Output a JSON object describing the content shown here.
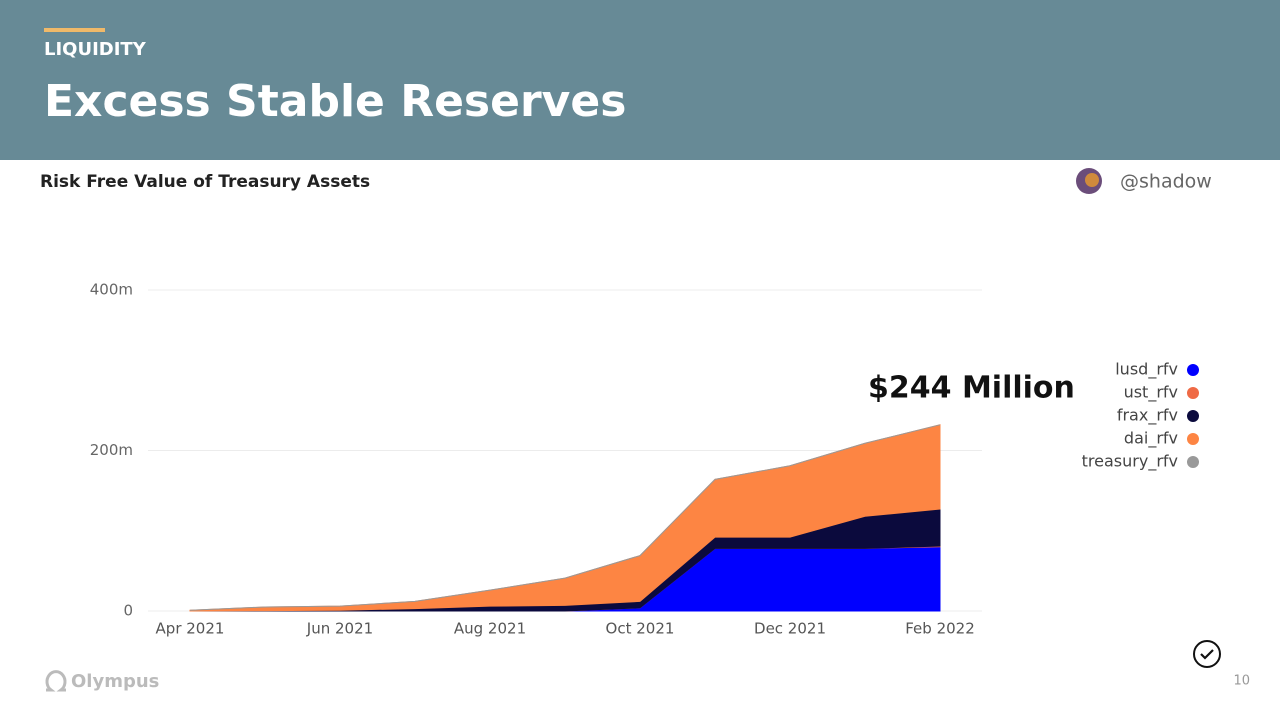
{
  "header": {
    "eyebrow": "LIQUIDITY",
    "title": "Excess Stable Reserves"
  },
  "chart_data": {
    "type": "stacked-area",
    "title": "Risk Free Value of Treasury Assets",
    "author": "@shadow",
    "annotation": "$244 Million",
    "x": [
      "2021-04",
      "2021-05",
      "2021-06",
      "2021-07",
      "2021-08",
      "2021-09",
      "2021-10",
      "2021-11",
      "2021-12",
      "2022-01",
      "2022-02"
    ],
    "xticks": [
      {
        "value": "2021-04",
        "label": "Apr 2021"
      },
      {
        "value": "2021-06",
        "label": "Jun 2021"
      },
      {
        "value": "2021-08",
        "label": "Aug 2021"
      },
      {
        "value": "2021-10",
        "label": "Oct 2021"
      },
      {
        "value": "2021-12",
        "label": "Dec 2021"
      },
      {
        "value": "2022-02",
        "label": "Feb 2022"
      }
    ],
    "ylim": [
      0,
      400
    ],
    "yticks": [
      0,
      {
        "value": 200,
        "label": "200m"
      },
      {
        "value": 400,
        "label": "400m"
      }
    ],
    "grid": true,
    "legend": "right",
    "series": [
      {
        "name": "lusd_rfv",
        "color": "#0000ff",
        "values": [
          0,
          0,
          0,
          0,
          0,
          0,
          4,
          78,
          78,
          78,
          80
        ]
      },
      {
        "name": "ust_rfv",
        "color": "#ef6a45",
        "values": [
          0,
          0,
          0,
          0,
          0,
          0,
          0,
          0,
          0,
          0,
          1
        ]
      },
      {
        "name": "frax_rfv",
        "color": "#0b0a3d",
        "values": [
          0,
          0.5,
          1,
          3,
          6,
          7,
          8,
          14,
          14,
          40,
          46
        ]
      },
      {
        "name": "dai_rfv",
        "color": "#fd8543",
        "values": [
          1,
          4.5,
          5,
          9,
          20,
          34,
          57,
          72,
          89,
          91,
          105
        ]
      },
      {
        "name": "treasury_rfv",
        "color": "#999999",
        "values": [
          0,
          0,
          0,
          0,
          0,
          0,
          0,
          0,
          0,
          0,
          0
        ]
      }
    ]
  },
  "footer": {
    "brand": "Olympus",
    "page": "10"
  }
}
